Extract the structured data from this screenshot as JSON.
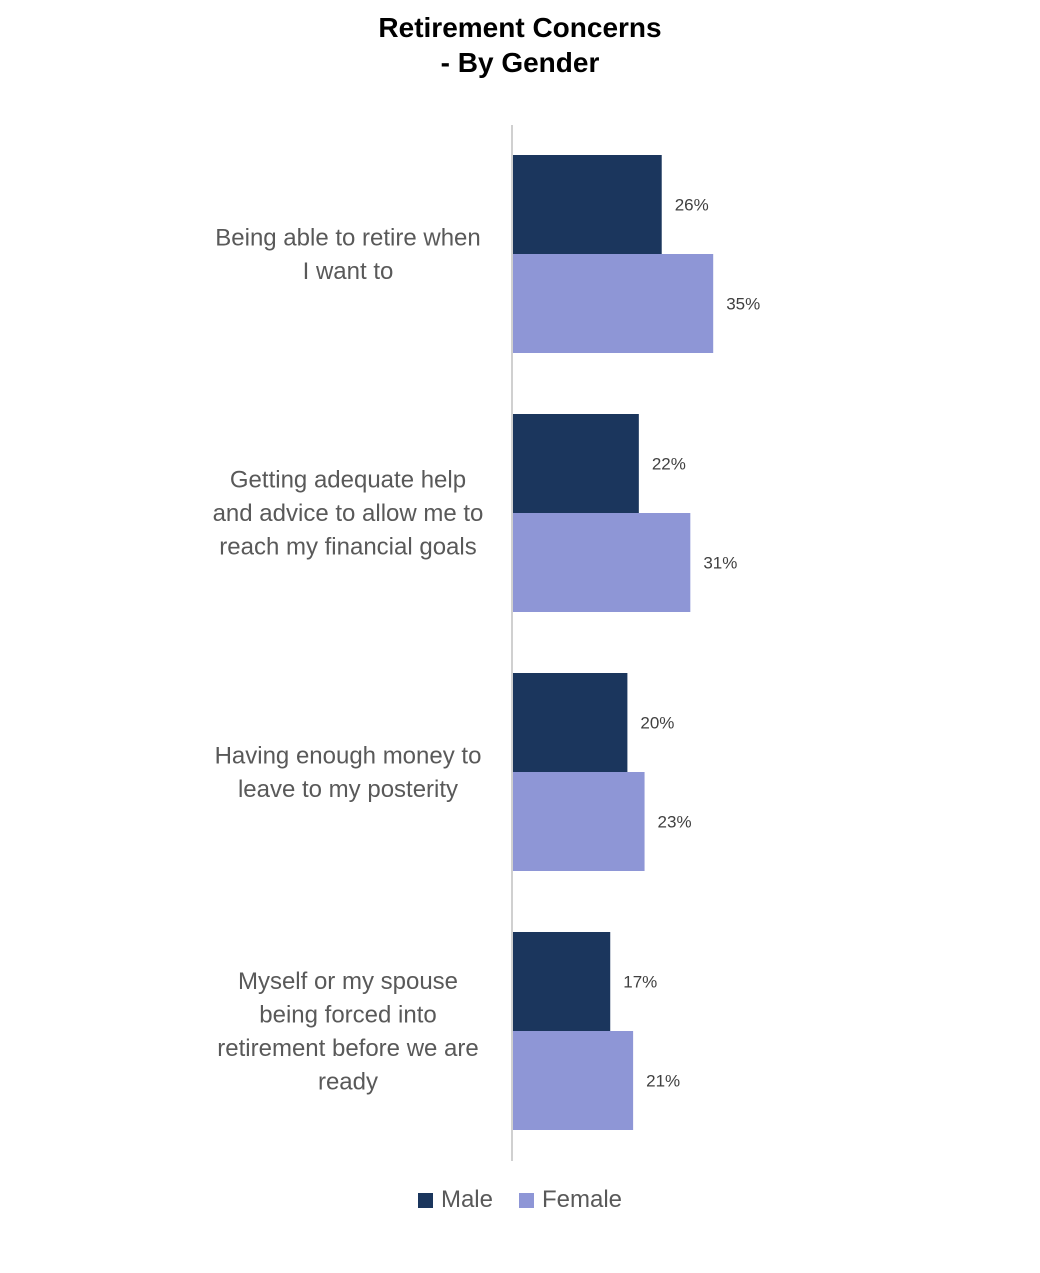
{
  "chart_data": {
    "type": "bar",
    "orientation": "horizontal",
    "title": [
      "Retirement Concerns",
      "- By Gender"
    ],
    "categories": [
      [
        "Being able to retire when",
        "I want to"
      ],
      [
        "Getting adequate help",
        "and advice to allow me to",
        "reach my financial goals"
      ],
      [
        "Having enough money to",
        "leave to my posterity"
      ],
      [
        "Myself or my spouse",
        "being forced into",
        "retirement before we are",
        "ready"
      ]
    ],
    "series": [
      {
        "name": "Male",
        "color": "#1b365d",
        "values": [
          26,
          22,
          20,
          17
        ]
      },
      {
        "name": "Female",
        "color": "#8e96d6",
        "values": [
          35,
          31,
          23,
          21
        ]
      }
    ],
    "value_format": "percent",
    "xlim": [
      0,
      100
    ],
    "legend": "bottom",
    "grid": false
  }
}
